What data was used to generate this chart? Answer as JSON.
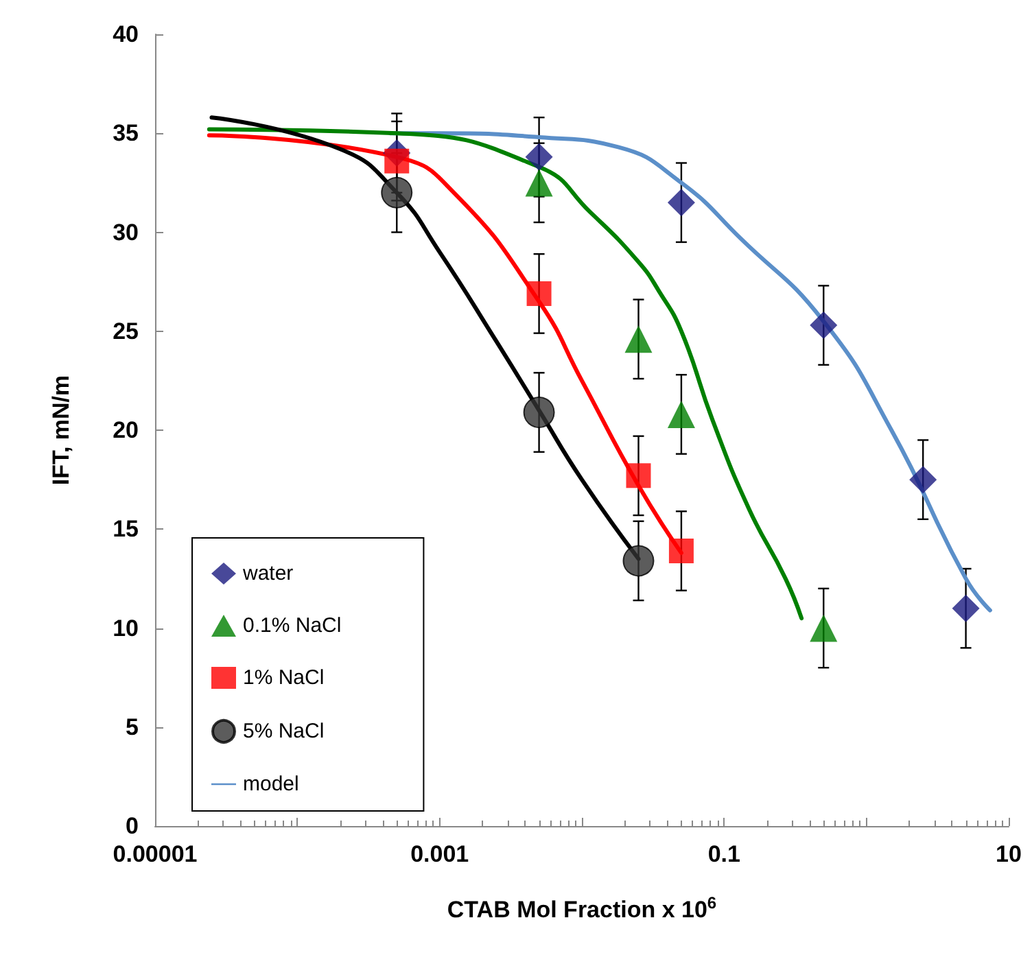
{
  "chart_data": {
    "type": "scatter",
    "xlabel": "CTAB Mol Fraction x 10$^{6}$",
    "ylabel": "IFT, mN/m",
    "log": "x",
    "xlim": [
      1e-05,
      10
    ],
    "xticks": [
      {
        "value": 1e-05,
        "label": "0.00001"
      },
      {
        "value": 0.0001,
        "label": null
      },
      0.001,
      {
        "value": 0.01,
        "label": null
      },
      0.1,
      {
        "value": 1,
        "label": null
      },
      10
    ],
    "ylim": [
      0,
      40
    ],
    "yticks": [
      0,
      5,
      10,
      15,
      20,
      25,
      30,
      35,
      40
    ],
    "grid": false,
    "legend": "bottom left",
    "series": [
      {
        "name": "water",
        "marker": "diamond",
        "color": "#1a1a80",
        "x": [
          0.0005,
          0.005,
          0.05,
          0.5,
          2.5,
          5
        ],
        "values": [
          34,
          33.8,
          31.5,
          25.3,
          17.5,
          11
        ],
        "errors": [
          2,
          2,
          2,
          2,
          2,
          2
        ]
      },
      {
        "name": "0.1% NaCl",
        "marker": "triangle",
        "color": "#008000",
        "x": [
          0.005,
          0.025,
          0.05,
          0.5
        ],
        "values": [
          32.5,
          24.6,
          20.8,
          10
        ],
        "errors": [
          2,
          2,
          2,
          2
        ]
      },
      {
        "name": "1% NaCl",
        "marker": "square",
        "color": "#ff0000",
        "x": [
          0.0005,
          0.005,
          0.025,
          0.05
        ],
        "values": [
          33.6,
          26.9,
          17.7,
          13.9
        ],
        "errors": [
          2,
          2,
          2,
          2
        ]
      },
      {
        "name": "5% NaCl",
        "marker": "circle",
        "color": "#333333",
        "x": [
          0.0005,
          0.005,
          0.025
        ],
        "values": [
          32,
          20.9,
          13.4
        ],
        "errors": [
          2,
          2,
          2
        ]
      },
      {
        "name": "model",
        "type": "line",
        "marker": "none",
        "color": "#5b8fc9",
        "x": [
          0.00045,
          0.001,
          0.005,
          0.018,
          0.05,
          0.13,
          0.5,
          1.5,
          5,
          7.4
        ],
        "values": [
          35,
          35,
          34.8,
          34.3,
          32.5,
          29.7,
          25.5,
          20,
          12.5,
          10.9
        ]
      },
      {
        "type": "line",
        "marker": "none",
        "color": "#008000",
        "x": [
          2.4e-05,
          0.0005,
          0.005,
          0.0115,
          0.025,
          0.035,
          0.05,
          0.083,
          0.15,
          0.27,
          0.35
        ],
        "values": [
          35.2,
          35,
          33.3,
          31,
          28.5,
          27,
          25,
          20.5,
          16,
          12.5,
          10.5
        ]
      },
      {
        "type": "line",
        "marker": "none",
        "color": "#ff0000",
        "x": [
          2.4e-05,
          0.0005,
          0.00126,
          0.005,
          0.01,
          0.025,
          0.05
        ],
        "values": [
          34.9,
          33.8,
          32,
          26.5,
          22.5,
          17.2,
          13.8
        ]
      },
      {
        "type": "line",
        "marker": "none",
        "color": "#000000",
        "x": [
          2.5e-05,
          0.0002,
          0.0005,
          0.001,
          0.0025,
          0.005,
          0.01,
          0.025
        ],
        "values": [
          35.8,
          34.2,
          32,
          29,
          24.5,
          21,
          17.5,
          13.5
        ]
      }
    ]
  }
}
